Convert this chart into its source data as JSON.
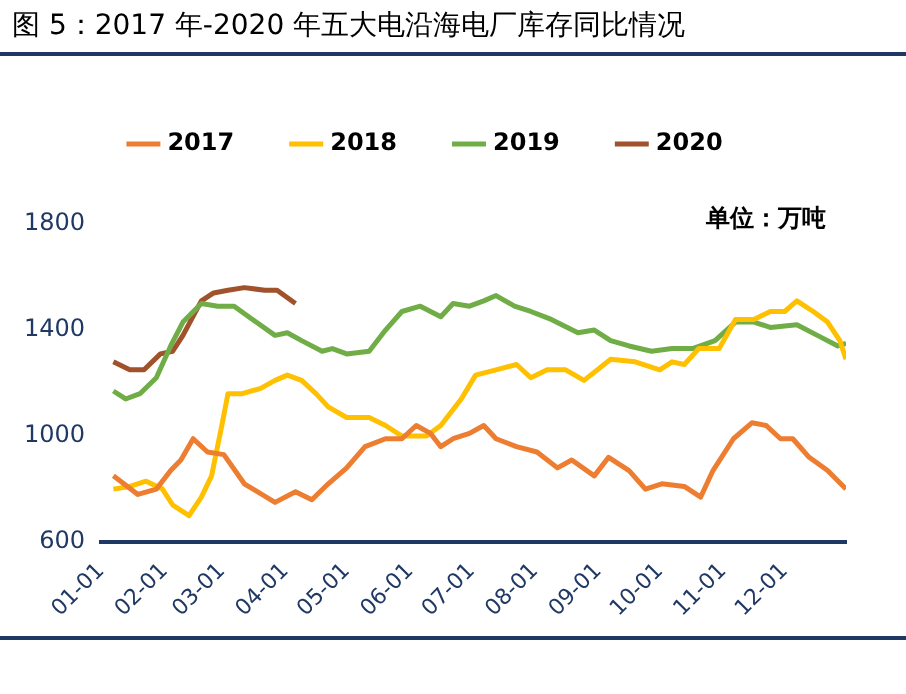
{
  "chart_data": {
    "type": "line",
    "title": "图 5：2017 年-2020 年五大电沿海电厂库存同比情况",
    "annotations": [
      "单位：万吨"
    ],
    "xlim": [
      "--01-01",
      "--12-31"
    ],
    "xticks": [
      {
        "value": "--01-01",
        "label": "01-01"
      },
      {
        "value": "--02-01",
        "label": "02-01"
      },
      {
        "value": "--03-01",
        "label": "03-01"
      },
      {
        "value": "--04-01",
        "label": "04-01"
      },
      {
        "value": "--05-01",
        "label": "05-01"
      },
      {
        "value": "--06-01",
        "label": "06-01"
      },
      {
        "value": "--07-01",
        "label": "07-01"
      },
      {
        "value": "--08-01",
        "label": "08-01"
      },
      {
        "value": "--09-01",
        "label": "09-01"
      },
      {
        "value": "--10-01",
        "label": "10-01"
      },
      {
        "value": "--11-01",
        "label": "11-01"
      },
      {
        "value": "--12-01",
        "label": "12-01"
      }
    ],
    "ylim": [
      600,
      1800
    ],
    "yticks": [
      600,
      1000,
      1400,
      1800
    ],
    "grid": false,
    "legend": "top",
    "series": [
      {
        "name": "2017",
        "color": "#ed7d31",
        "x": [
          "--01-07",
          "--01-19",
          "--01-28",
          "--02-04",
          "--02-09",
          "--02-15",
          "--02-22",
          "--03-02",
          "--03-12",
          "--03-27",
          "--04-06",
          "--04-14",
          "--04-22",
          "--05-01",
          "--05-10",
          "--05-20",
          "--05-28",
          "--06-04",
          "--06-11",
          "--06-16",
          "--06-22",
          "--06-30",
          "--07-07",
          "--07-13",
          "--07-23",
          "--08-02",
          "--08-12",
          "--08-19",
          "--08-30",
          "--09-06",
          "--09-16",
          "--09-24",
          "--10-02",
          "--10-13",
          "--10-21",
          "--10-27",
          "--11-06",
          "--11-15",
          "--11-22",
          "--11-29",
          "--12-05",
          "--12-13",
          "--12-22",
          "--12-31"
        ],
        "values": [
          850,
          780,
          800,
          870,
          910,
          990,
          940,
          930,
          820,
          750,
          790,
          760,
          820,
          880,
          960,
          990,
          990,
          1040,
          1010,
          960,
          990,
          1010,
          1040,
          990,
          960,
          940,
          880,
          910,
          850,
          920,
          870,
          800,
          820,
          810,
          770,
          870,
          990,
          1050,
          1040,
          990,
          990,
          920,
          870,
          800
        ]
      },
      {
        "name": "2018",
        "color": "#ffc000",
        "x": [
          "--01-07",
          "--01-15",
          "--01-23",
          "--01-31",
          "--02-05",
          "--02-13",
          "--02-19",
          "--02-24",
          "--03-01",
          "--03-04",
          "--03-11",
          "--03-20",
          "--03-27",
          "--04-02",
          "--04-09",
          "--04-16",
          "--04-22",
          "--05-01",
          "--05-12",
          "--05-20",
          "--05-28",
          "--06-09",
          "--06-16",
          "--06-26",
          "--07-03",
          "--07-13",
          "--07-23",
          "--07-30",
          "--08-07",
          "--08-16",
          "--08-25",
          "--09-07",
          "--09-19",
          "--10-01",
          "--10-07",
          "--10-13",
          "--10-20",
          "--10-30",
          "--11-07",
          "--11-16",
          "--11-24",
          "--12-01",
          "--12-07",
          "--12-15",
          "--12-22",
          "--12-28",
          "--12-31"
        ],
        "values": [
          800,
          810,
          830,
          800,
          740,
          700,
          770,
          850,
          1040,
          1160,
          1160,
          1180,
          1210,
          1230,
          1210,
          1160,
          1110,
          1070,
          1070,
          1040,
          1000,
          1000,
          1040,
          1140,
          1230,
          1250,
          1270,
          1220,
          1250,
          1250,
          1210,
          1290,
          1280,
          1250,
          1280,
          1270,
          1330,
          1330,
          1440,
          1440,
          1470,
          1470,
          1510,
          1470,
          1430,
          1360,
          1290
        ]
      },
      {
        "name": "2019",
        "color": "#70ad47",
        "x": [
          "--01-07",
          "--01-13",
          "--01-20",
          "--01-28",
          "--02-04",
          "--02-10",
          "--02-19",
          "--02-27",
          "--03-07",
          "--03-16",
          "--03-27",
          "--04-02",
          "--04-09",
          "--04-19",
          "--04-24",
          "--05-01",
          "--05-12",
          "--05-20",
          "--05-28",
          "--06-06",
          "--06-16",
          "--06-22",
          "--06-30",
          "--07-07",
          "--07-13",
          "--07-22",
          "--07-30",
          "--08-09",
          "--08-22",
          "--08-30",
          "--09-07",
          "--09-16",
          "--09-27",
          "--10-07",
          "--10-17",
          "--10-28",
          "--11-07",
          "--11-16",
          "--11-24",
          "--12-07",
          "--12-17",
          "--12-27",
          "--12-31"
        ],
        "values": [
          1170,
          1140,
          1160,
          1220,
          1340,
          1430,
          1500,
          1490,
          1490,
          1440,
          1380,
          1390,
          1360,
          1320,
          1330,
          1310,
          1320,
          1400,
          1470,
          1490,
          1450,
          1500,
          1490,
          1510,
          1530,
          1490,
          1470,
          1440,
          1390,
          1400,
          1360,
          1340,
          1320,
          1330,
          1330,
          1360,
          1430,
          1430,
          1410,
          1420,
          1380,
          1340,
          1350
        ]
      },
      {
        "name": "2020",
        "color": "#a0522d",
        "x": [
          "--01-07",
          "--01-15",
          "--01-22",
          "--01-30",
          "--02-05",
          "--02-10",
          "--02-19",
          "--02-25",
          "--03-04",
          "--03-12",
          "--03-22",
          "--03-28",
          "--04-06"
        ],
        "values": [
          1280,
          1250,
          1250,
          1310,
          1320,
          1380,
          1510,
          1540,
          1550,
          1560,
          1550,
          1550,
          1500
        ]
      }
    ]
  }
}
